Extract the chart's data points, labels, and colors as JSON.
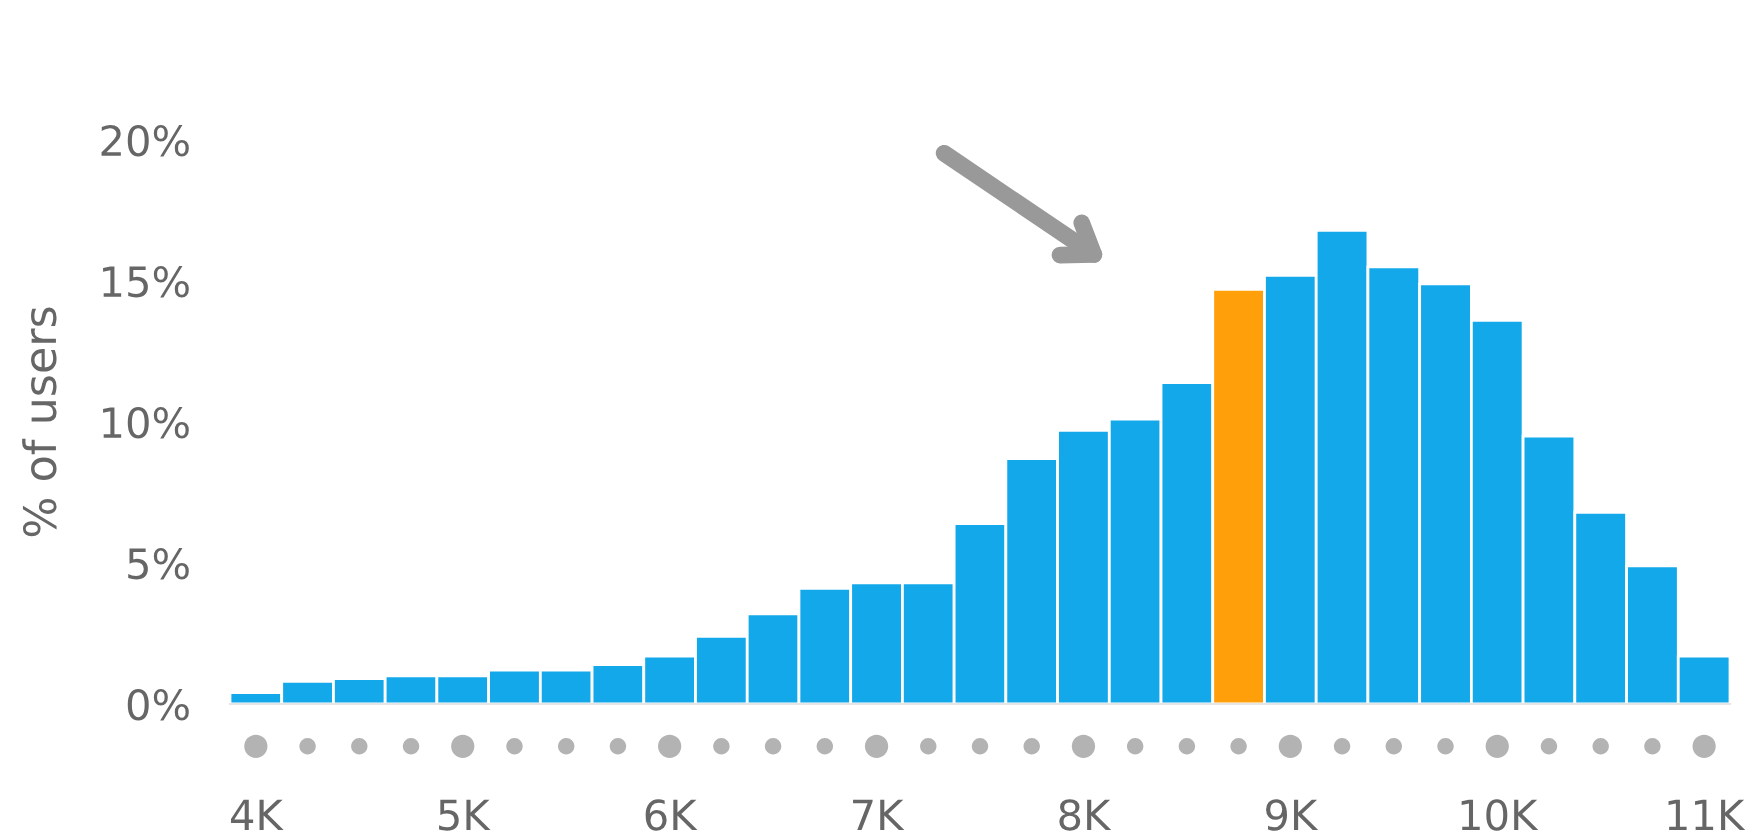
{
  "chart_data": {
    "type": "histogram",
    "ylabel": "% of users",
    "bins": [
      3875,
      4125,
      4375,
      4625,
      4875,
      5125,
      5375,
      5625,
      5875,
      6125,
      6375,
      6625,
      6875,
      7125,
      7375,
      7625,
      7875,
      8125,
      8375,
      8625,
      8875,
      9125,
      9375,
      9625,
      9875,
      10125,
      10375,
      10625,
      10875,
      11125
    ],
    "values": [
      0.4,
      0.8,
      0.9,
      1.0,
      1.0,
      1.2,
      1.2,
      1.4,
      1.7,
      2.4,
      3.2,
      4.1,
      4.3,
      4.3,
      6.4,
      8.7,
      9.7,
      10.1,
      11.4,
      14.7,
      15.2,
      16.8,
      15.5,
      14.9,
      13.6,
      9.5,
      6.8,
      4.9,
      1.7
    ],
    "colors": [
      "#13a8ea",
      "#13a8ea",
      "#13a8ea",
      "#13a8ea",
      "#13a8ea",
      "#13a8ea",
      "#13a8ea",
      "#13a8ea",
      "#13a8ea",
      "#13a8ea",
      "#13a8ea",
      "#13a8ea",
      "#13a8ea",
      "#13a8ea",
      "#13a8ea",
      "#13a8ea",
      "#13a8ea",
      "#13a8ea",
      "#13a8ea",
      "#ff9f0a",
      "#13a8ea",
      "#13a8ea",
      "#13a8ea",
      "#13a8ea",
      "#13a8ea",
      "#13a8ea",
      "#13a8ea",
      "#13a8ea",
      "#13a8ea"
    ],
    "xlim": [
      3875,
      11125
    ],
    "xticks": [
      {
        "value": 4000,
        "label": "4K"
      },
      {
        "value": 5000,
        "label": "5K"
      },
      {
        "value": 6000,
        "label": "6K"
      },
      {
        "value": 7000,
        "label": "7K"
      },
      {
        "value": 8000,
        "label": "8K"
      },
      {
        "value": 9000,
        "label": "9K"
      },
      {
        "value": 10000,
        "label": "10K"
      },
      {
        "value": 11000,
        "label": "11K"
      }
    ],
    "ylim": [
      0,
      20
    ],
    "yticks": [
      {
        "value": 0,
        "label": "0%"
      },
      {
        "value": 5,
        "label": "5%"
      },
      {
        "value": 10,
        "label": "10%"
      },
      {
        "value": 15,
        "label": "15%"
      },
      {
        "value": 20,
        "label": "20%"
      }
    ],
    "grid": false,
    "legend": false
  }
}
